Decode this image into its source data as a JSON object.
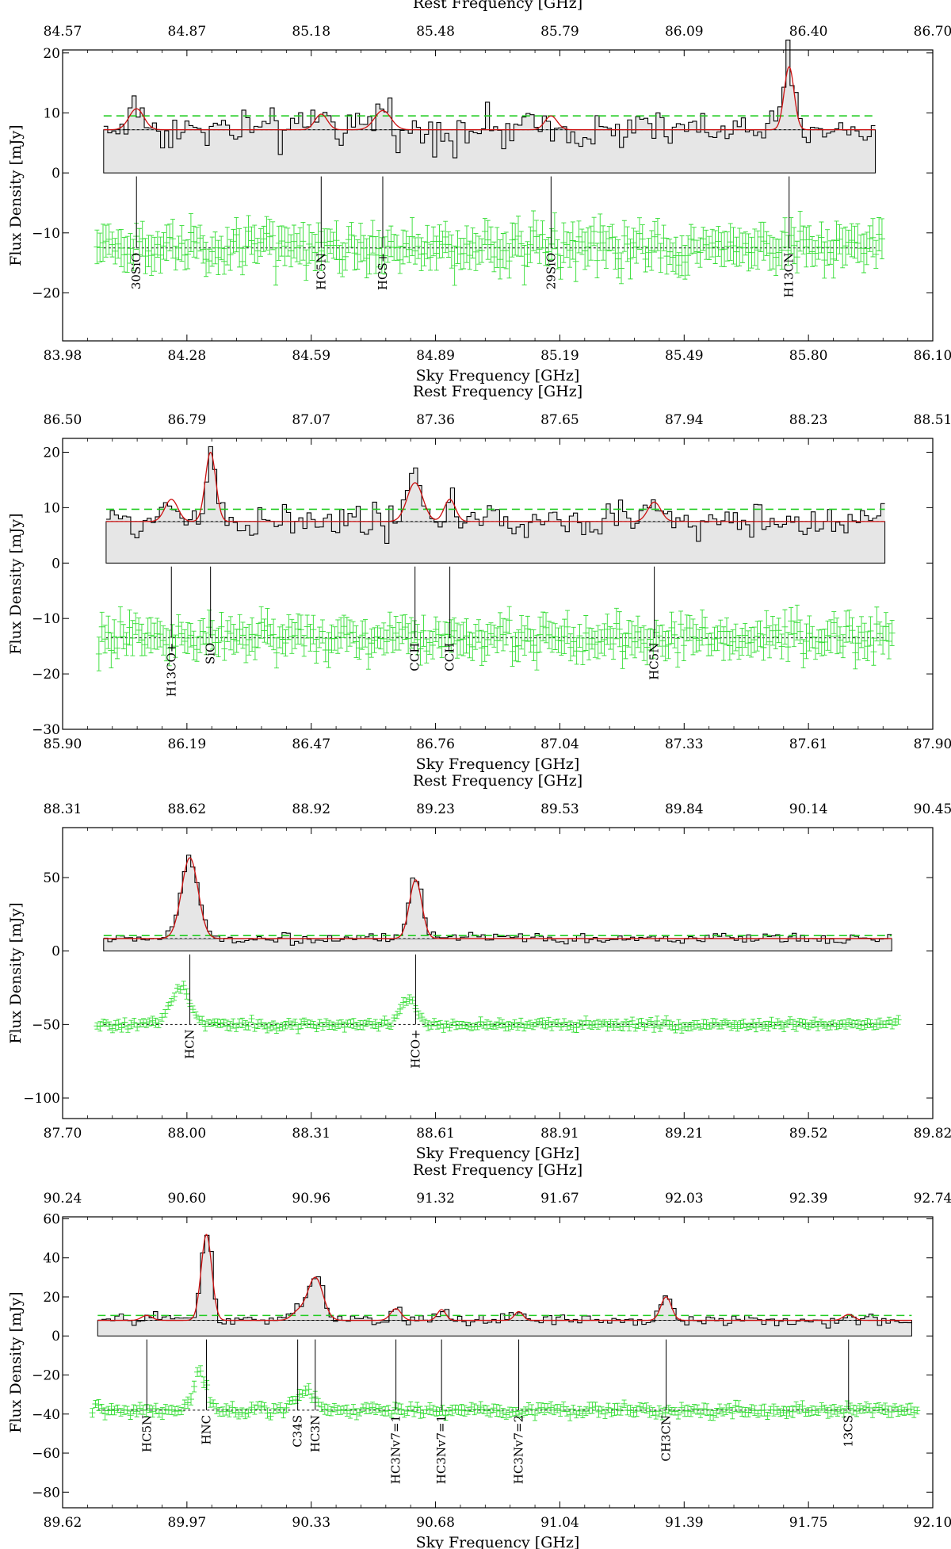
{
  "chart_data": [
    {
      "type": "line",
      "top_label": "Rest Frequency [GHz]",
      "bottom_label": "Sky Frequency [GHz]",
      "ylabel": "Flux Density [mJy]",
      "top_ticks": [
        "84.57",
        "84.87",
        "85.18",
        "85.48",
        "85.79",
        "86.09",
        "86.40",
        "86.70"
      ],
      "bottom_ticks": [
        "83.98",
        "84.28",
        "84.59",
        "84.89",
        "85.19",
        "85.49",
        "85.80",
        "86.10"
      ],
      "y_ticks": [
        "20",
        "10",
        "0",
        "−10",
        "−20"
      ],
      "y_tick_values": [
        20,
        10,
        0,
        -10,
        -20
      ],
      "xlim": [
        83.98,
        86.1
      ],
      "ylim": [
        -28,
        20.5
      ],
      "continuum": 7.2,
      "threshold": 9.5,
      "residual_offset": -12.5,
      "noise": 2.4,
      "data_range": [
        84.08,
        85.96
      ],
      "lines": [
        {
          "label": "30SiO",
          "x": 84.16,
          "amp": 3.5,
          "sigma": 0.018
        },
        {
          "label": "HC5N",
          "x": 84.61,
          "amp": 2.6,
          "sigma": 0.015
        },
        {
          "label": "HCS+",
          "x": 84.76,
          "amp": 3.2,
          "sigma": 0.02
        },
        {
          "label": "29SiO",
          "x": 85.17,
          "amp": 2.3,
          "sigma": 0.015
        },
        {
          "label": "H13CN",
          "x": 85.75,
          "amp": 10.5,
          "sigma": 0.012
        }
      ]
    },
    {
      "type": "line",
      "top_label": "Rest Frequency [GHz]",
      "bottom_label": "Sky Frequency [GHz]",
      "ylabel": "Flux Density [mJy]",
      "top_ticks": [
        "86.50",
        "86.79",
        "87.07",
        "87.36",
        "87.65",
        "87.94",
        "88.23",
        "88.51"
      ],
      "bottom_ticks": [
        "85.90",
        "86.19",
        "86.47",
        "86.76",
        "87.04",
        "87.33",
        "87.61",
        "87.90"
      ],
      "y_ticks": [
        "20",
        "10",
        "0",
        "−10",
        "−20",
        "−30"
      ],
      "y_tick_values": [
        20,
        10,
        0,
        -10,
        -20,
        -30
      ],
      "xlim": [
        85.9,
        87.9
      ],
      "ylim": [
        -30,
        22.5
      ],
      "continuum": 7.5,
      "threshold": 9.7,
      "residual_offset": -13.5,
      "noise": 2.3,
      "data_range": [
        86.0,
        87.79
      ],
      "lines": [
        {
          "label": "H13CO+",
          "x": 86.15,
          "amp": 4.0,
          "sigma": 0.015
        },
        {
          "label": "SiO",
          "x": 86.24,
          "amp": 12.5,
          "sigma": 0.012
        },
        {
          "label": "CCH",
          "x": 86.71,
          "amp": 7.0,
          "sigma": 0.018
        },
        {
          "label": "CCH",
          "x": 86.79,
          "amp": 4.0,
          "sigma": 0.013
        },
        {
          "label": "HC5N",
          "x": 87.26,
          "amp": 3.5,
          "sigma": 0.015
        }
      ]
    },
    {
      "type": "line",
      "top_label": "Rest Frequency [GHz]",
      "bottom_label": "Sky Frequency [GHz]",
      "ylabel": "Flux Density [mJy]",
      "top_ticks": [
        "88.31",
        "88.62",
        "88.92",
        "89.23",
        "89.53",
        "89.84",
        "90.14",
        "90.45"
      ],
      "bottom_ticks": [
        "87.70",
        "88.00",
        "88.31",
        "88.61",
        "88.91",
        "89.21",
        "89.52",
        "89.82"
      ],
      "y_ticks": [
        "50",
        "0",
        "−50",
        "−100"
      ],
      "y_tick_values": [
        50,
        0,
        -50,
        -100
      ],
      "xlim": [
        87.7,
        89.82
      ],
      "ylim": [
        -114,
        84
      ],
      "continuum": 8.5,
      "threshold": 10.5,
      "residual_offset": -50,
      "noise": 2.5,
      "data_range": [
        87.8,
        89.72
      ],
      "lines": [
        {
          "label": "HCN",
          "x": 88.01,
          "amp": 55,
          "sigma": 0.02
        },
        {
          "label": "HCO+",
          "x": 88.56,
          "amp": 40,
          "sigma": 0.015
        }
      ]
    },
    {
      "type": "line",
      "top_label": "Rest Frequency [GHz]",
      "bottom_label": "Sky Frequency [GHz]",
      "ylabel": "Flux Density [mJy]",
      "top_ticks": [
        "90.24",
        "90.60",
        "90.96",
        "91.32",
        "91.67",
        "92.03",
        "92.39",
        "92.74"
      ],
      "bottom_ticks": [
        "89.62",
        "89.97",
        "90.33",
        "90.68",
        "91.04",
        "91.39",
        "91.75",
        "92.10"
      ],
      "y_ticks": [
        "60",
        "40",
        "20",
        "0",
        "−20",
        "−40",
        "−60",
        "−80"
      ],
      "y_tick_values": [
        60,
        40,
        20,
        0,
        -20,
        -40,
        -60,
        -80
      ],
      "xlim": [
        89.62,
        92.1
      ],
      "ylim": [
        -88,
        61
      ],
      "continuum": 8,
      "threshold": 10.5,
      "residual_offset": -38,
      "noise": 2.2,
      "data_range": [
        89.72,
        92.04
      ],
      "lines": [
        {
          "label": "HC5N",
          "x": 89.86,
          "amp": 2.5,
          "sigma": 0.015
        },
        {
          "label": "HNC",
          "x": 90.03,
          "amp": 44,
          "sigma": 0.015
        },
        {
          "label": "C34S",
          "x": 90.29,
          "amp": 4,
          "sigma": 0.018
        },
        {
          "label": "HC3N",
          "x": 90.34,
          "amp": 22,
          "sigma": 0.022
        },
        {
          "label": "HC3Nv7=1",
          "x": 90.57,
          "amp": 6,
          "sigma": 0.015
        },
        {
          "label": "HC3Nv7=1",
          "x": 90.7,
          "amp": 5.5,
          "sigma": 0.012
        },
        {
          "label": "HC3Nv7=2",
          "x": 90.92,
          "amp": 4.5,
          "sigma": 0.012
        },
        {
          "label": "CH3CN",
          "x": 91.34,
          "amp": 12,
          "sigma": 0.015
        },
        {
          "label": "13CS",
          "x": 91.86,
          "amp": 3,
          "sigma": 0.015
        }
      ]
    }
  ]
}
